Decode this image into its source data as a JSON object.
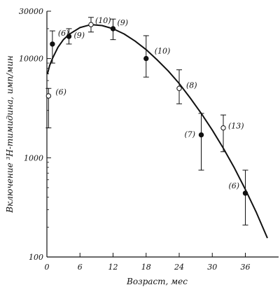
{
  "chart_data": {
    "type": "scatter",
    "title": "",
    "xlabel": "Возраст, мес",
    "ylabel": "Включение ³H-тимидина, имп/мин",
    "x_scale": "linear",
    "y_scale": "log",
    "xlim": [
      0,
      40
    ],
    "ylim": [
      100,
      30000
    ],
    "x_ticks": [
      0,
      6,
      12,
      18,
      24,
      30,
      36
    ],
    "x_tick_labels": [
      "0",
      "6",
      "12",
      "18",
      "24",
      "30",
      "36"
    ],
    "y_ticks": [
      100,
      1000,
      10000,
      30000
    ],
    "y_tick_labels": [
      "100",
      "1000",
      "10000",
      "30000"
    ],
    "grid": false,
    "legend": "none",
    "points": [
      {
        "x": 0.3,
        "y": 4200,
        "ylow": 2000,
        "yhigh": 5000,
        "marker": "open",
        "label": "(6)"
      },
      {
        "x": 1,
        "y": 14000,
        "ylow": 9000,
        "yhigh": 19000,
        "marker": "filled",
        "label": "(6)"
      },
      {
        "x": 4,
        "y": 16700,
        "ylow": 14000,
        "yhigh": 20000,
        "marker": "filled",
        "label": "(9)"
      },
      {
        "x": 8,
        "y": 22000,
        "ylow": 18500,
        "yhigh": 26000,
        "marker": "open",
        "label": "(10)"
      },
      {
        "x": 12,
        "y": 20000,
        "ylow": 15500,
        "yhigh": 25000,
        "marker": "filled",
        "label": "(9)"
      },
      {
        "x": 18,
        "y": 10000,
        "ylow": 6500,
        "yhigh": 17000,
        "marker": "filled",
        "label": "(10)"
      },
      {
        "x": 24,
        "y": 5000,
        "ylow": 3500,
        "yhigh": 7700,
        "marker": "open",
        "label": "(8)"
      },
      {
        "x": 28,
        "y": 1700,
        "ylow": 750,
        "yhigh": 2800,
        "marker": "filled",
        "label": "(7)"
      },
      {
        "x": 32,
        "y": 2000,
        "ylow": 1150,
        "yhigh": 2700,
        "marker": "open",
        "label": "(13)"
      },
      {
        "x": 36,
        "y": 440,
        "ylow": 210,
        "yhigh": 750,
        "marker": "filled",
        "label": "(6)"
      }
    ],
    "fit_curve": {
      "x": [
        0.1,
        0.5,
        1,
        2,
        3,
        4,
        6,
        8,
        10,
        12,
        14,
        16,
        18,
        20,
        22,
        24,
        26,
        28,
        30,
        32,
        34,
        36,
        38,
        40
      ],
      "y": [
        7000,
        8500,
        10000,
        13000,
        15500,
        17500,
        20500,
        22000,
        21500,
        20000,
        17700,
        15000,
        12300,
        9700,
        7500,
        5600,
        4000,
        2800,
        1900,
        1250,
        790,
        480,
        280,
        155
      ]
    }
  }
}
